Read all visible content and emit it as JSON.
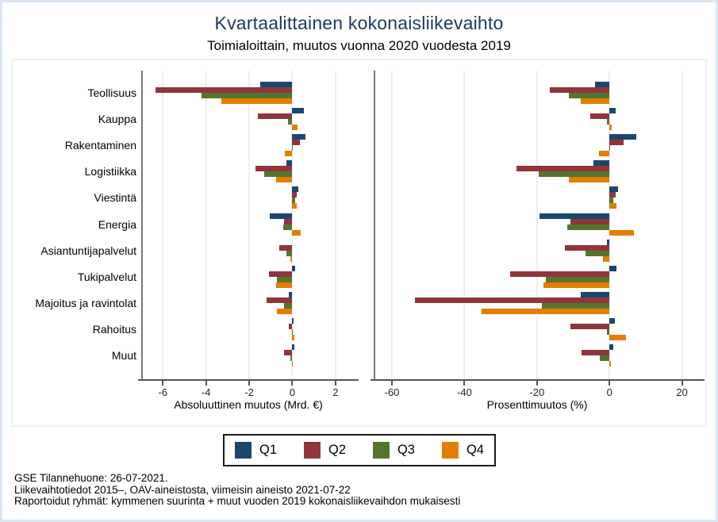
{
  "title": "Kvartaalittainen kokonaisliikevaihto",
  "subtitle": "Toimialoittain, muutos vuonna 2020 vuodesta 2019",
  "legend": {
    "items": [
      {
        "label": "Q1",
        "color": "#1a476f"
      },
      {
        "label": "Q2",
        "color": "#90353b"
      },
      {
        "label": "Q3",
        "color": "#55752f"
      },
      {
        "label": "Q4",
        "color": "#e37e00"
      }
    ]
  },
  "footer": {
    "lines": [
      "GSE Tilannehuone: 26-07-2021.",
      "Liikevaihtotiedot 2015–, OAV-aineistosta, viimeisin aineisto 2021-07-22",
      "Raportoidut ryhmät: kymmenen suurinta + muut vuoden 2019 kokonaisliikevaihdon mukaisesti"
    ]
  },
  "colors": {
    "q1": "#1a476f",
    "q2": "#90353b",
    "q3": "#55752f",
    "q4": "#e37e00",
    "title": "#1f3864",
    "axis": "#555555",
    "grid": "#e9f0f5"
  },
  "chart_data": [
    {
      "type": "bar",
      "orientation": "horizontal",
      "xlabel": "Absoluuttinen muutos (Mrd. €)",
      "categories": [
        "Teollisuus",
        "Kauppa",
        "Rakentaminen",
        "Logistiikka",
        "Viestintä",
        "Energia",
        "Asiantuntijapalvelut",
        "Tukipalvelut",
        "Majoitus ja ravintolat",
        "Rahoitus",
        "Muut"
      ],
      "series": [
        {
          "name": "Q1",
          "color": "#1a476f",
          "values": [
            -1.5,
            0.55,
            0.6,
            -0.26,
            0.27,
            -1.05,
            0.0,
            0.12,
            -0.15,
            0.05,
            0.1
          ]
        },
        {
          "name": "Q2",
          "color": "#90353b",
          "values": [
            -6.35,
            -1.6,
            0.35,
            -1.7,
            0.19,
            -0.4,
            -0.6,
            -1.1,
            -1.2,
            -0.15,
            -0.37
          ]
        },
        {
          "name": "Q3",
          "color": "#55752f",
          "values": [
            -4.2,
            -0.2,
            0.02,
            -1.3,
            0.12,
            -0.42,
            -0.27,
            -0.73,
            -0.4,
            -0.02,
            -0.11
          ]
        },
        {
          "name": "Q4",
          "color": "#e37e00",
          "values": [
            -3.3,
            0.25,
            -0.35,
            -0.77,
            0.21,
            0.4,
            -0.08,
            -0.77,
            -0.7,
            0.11,
            0.02
          ]
        }
      ],
      "xticks": [
        -6,
        -4,
        -2,
        0,
        2
      ],
      "xlim": [
        -6.93,
        3.07
      ],
      "grid": "vertical",
      "legend_position": "bottom"
    },
    {
      "type": "bar",
      "orientation": "horizontal",
      "xlabel": "Prosenttimuutos (%)",
      "categories": [
        "Teollisuus",
        "Kauppa",
        "Rakentaminen",
        "Logistiikka",
        "Viestintä",
        "Energia",
        "Asiantuntijapalvelut",
        "Tukipalvelut",
        "Majoitus ja ravintolat",
        "Rahoitus",
        "Muut"
      ],
      "series": [
        {
          "name": "Q1",
          "color": "#1a476f",
          "values": [
            -4.0,
            1.8,
            7.3,
            -4.4,
            2.3,
            -19.4,
            -0.8,
            2.0,
            -8.0,
            1.5,
            1.1
          ]
        },
        {
          "name": "Q2",
          "color": "#90353b",
          "values": [
            -16.5,
            -5.3,
            3.8,
            -25.7,
            1.7,
            -10.7,
            -12.2,
            -27.4,
            -53.7,
            -10.7,
            -7.7
          ]
        },
        {
          "name": "Q3",
          "color": "#55752f",
          "values": [
            -11.2,
            -0.7,
            0.2,
            -19.5,
            1.0,
            -11.6,
            -6.7,
            -17.5,
            -18.6,
            -0.7,
            -2.7
          ]
        },
        {
          "name": "Q4",
          "color": "#e37e00",
          "values": [
            -7.9,
            0.7,
            -2.8,
            -11.3,
            2.0,
            6.7,
            -1.8,
            -18.3,
            -35.3,
            4.6,
            0.3
          ]
        }
      ],
      "xticks": [
        -60,
        -40,
        -20,
        0,
        20
      ],
      "xlim": [
        -64.6,
        26.2
      ],
      "grid": "vertical",
      "legend_position": "bottom"
    }
  ]
}
